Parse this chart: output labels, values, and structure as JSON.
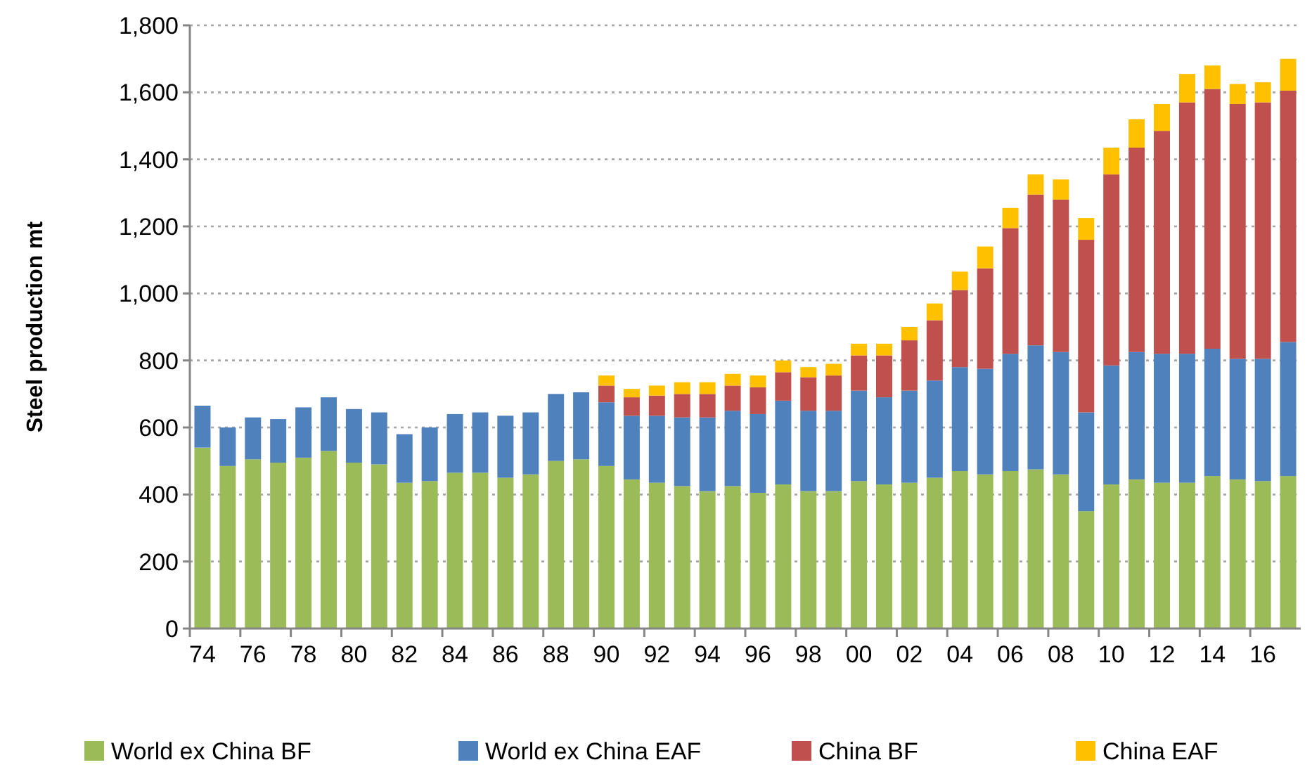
{
  "chart_data": {
    "type": "bar",
    "stacked": true,
    "ylabel": "Steel production mt",
    "categories": [
      "74",
      null,
      "76",
      null,
      "78",
      null,
      "80",
      null,
      "82",
      null,
      "84",
      null,
      "86",
      null,
      "88",
      null,
      "90",
      null,
      "92",
      null,
      "94",
      null,
      "96",
      null,
      "98",
      null,
      "00",
      null,
      "02",
      null,
      "04",
      null,
      "06",
      null,
      "08",
      null,
      "10",
      null,
      "12",
      null,
      "14",
      null,
      "16",
      null
    ],
    "series": [
      {
        "name": "World ex China BF",
        "color": "#9bbb59",
        "values": [
          540,
          485,
          505,
          495,
          510,
          530,
          495,
          490,
          435,
          440,
          465,
          465,
          450,
          460,
          500,
          505,
          485,
          445,
          435,
          425,
          410,
          425,
          405,
          430,
          410,
          410,
          440,
          430,
          435,
          450,
          470,
          460,
          470,
          475,
          460,
          350,
          430,
          445,
          435,
          435,
          455,
          445,
          440,
          455
        ]
      },
      {
        "name": "World ex China EAF",
        "color": "#4f81bd",
        "values": [
          125,
          115,
          125,
          130,
          150,
          160,
          160,
          155,
          145,
          160,
          175,
          180,
          185,
          185,
          200,
          200,
          190,
          190,
          200,
          205,
          220,
          225,
          235,
          250,
          240,
          240,
          270,
          260,
          275,
          290,
          310,
          315,
          350,
          370,
          365,
          295,
          355,
          380,
          385,
          385,
          380,
          360,
          365,
          400
        ]
      },
      {
        "name": "China BF",
        "color": "#c0504d",
        "values": [
          null,
          null,
          null,
          null,
          null,
          null,
          null,
          null,
          null,
          null,
          null,
          null,
          null,
          null,
          null,
          null,
          50,
          55,
          60,
          70,
          70,
          75,
          80,
          85,
          100,
          105,
          105,
          125,
          150,
          180,
          230,
          300,
          375,
          450,
          455,
          515,
          570,
          610,
          665,
          750,
          775,
          760,
          765,
          750
        ]
      },
      {
        "name": "China EAF",
        "color": "#ffc000",
        "values": [
          null,
          null,
          null,
          null,
          null,
          null,
          null,
          null,
          null,
          null,
          null,
          null,
          null,
          null,
          null,
          null,
          30,
          25,
          30,
          35,
          35,
          35,
          35,
          35,
          30,
          35,
          35,
          35,
          40,
          50,
          55,
          65,
          60,
          60,
          60,
          65,
          80,
          85,
          80,
          85,
          70,
          60,
          60,
          95
        ]
      }
    ],
    "ylim": [
      0,
      1800
    ],
    "yticks": [
      0,
      200,
      400,
      600,
      800,
      {
        "value": 1000,
        "label": "1,000"
      },
      {
        "value": 1200,
        "label": "1,200"
      },
      {
        "value": 1400,
        "label": "1,400"
      },
      {
        "value": 1600,
        "label": "1,600"
      },
      {
        "value": 1800,
        "label": "1,800"
      }
    ],
    "grid": "y",
    "legend": "bottom"
  }
}
